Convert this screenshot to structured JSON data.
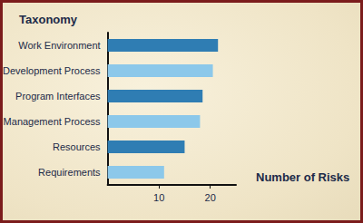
{
  "chart_data": {
    "type": "bar",
    "orientation": "horizontal",
    "y_label": "Taxonomy",
    "x_label": "Number of Risks",
    "categories": [
      "Work Environment",
      "Development Process",
      "Program Interfaces",
      "Management Process",
      "Resources",
      "Requirements"
    ],
    "values": [
      21.5,
      20.5,
      18.5,
      18,
      15,
      11
    ],
    "colors": [
      "#2f7db3",
      "#8cc8ea",
      "#2f7db3",
      "#8cc8ea",
      "#2f7db3",
      "#8cc8ea"
    ],
    "xlim": [
      0,
      25
    ],
    "xticks": [
      10,
      20
    ],
    "grid": false
  }
}
